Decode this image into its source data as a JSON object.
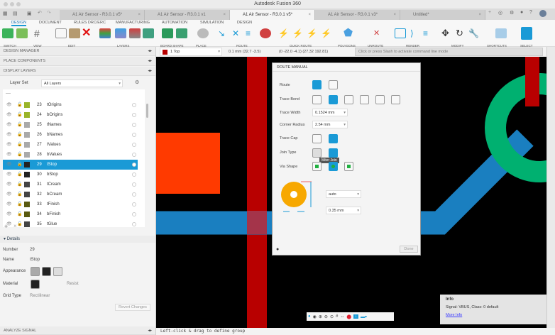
{
  "app": {
    "title": "Autodesk Fusion 360"
  },
  "tabs": [
    {
      "label": "A1 Air Sensor - R3.0.1 v5*"
    },
    {
      "label": "A1 Air Sensor - R3.0.1 v1"
    },
    {
      "label": "A1 Air Sensor - R3.0.1 v5*",
      "active": true
    },
    {
      "label": "A1 Air Sensor - R3.0.1 v3*"
    },
    {
      "label": "Untitled*"
    }
  ],
  "ribbon": {
    "tabs": [
      "DESIGN",
      "DOCUMENT",
      "RULES DRC/ERC",
      "MANUFACTURING",
      "AUTOMATION",
      "SIMULATION",
      "DESIGN"
    ],
    "groups": [
      "SWITCH",
      "VIEW",
      "EDIT",
      "LAYERS",
      "BOARD SHAPE",
      "PLACE",
      "ROUTE",
      "QUICK ROUTE",
      "POLYGONS",
      "UNROUTE",
      "RENDER",
      "MODIFY",
      "SHORTCUTS",
      "SELECT"
    ]
  },
  "left": {
    "design_manager": "DESIGN MANAGER",
    "place_components": "PLACE COMPONENTS",
    "display_layers": "DISPLAY LAYERS",
    "layer_set_label": "Layer Set",
    "layer_set_value": "All Layers",
    "layers": [
      {
        "num": "23",
        "name": "tOrigins",
        "color": "#9ab52a"
      },
      {
        "num": "24",
        "name": "bOrigins",
        "color": "#9ab52a"
      },
      {
        "num": "25",
        "name": "tNames",
        "color": "#aaaaaa"
      },
      {
        "num": "26",
        "name": "bNames",
        "color": "#aaaaaa"
      },
      {
        "num": "27",
        "name": "tValues",
        "color": "#aaaaaa"
      },
      {
        "num": "28",
        "name": "bValues",
        "color": "#aaaaaa"
      },
      {
        "num": "29",
        "name": "tStop",
        "color": "#222222",
        "selected": true
      },
      {
        "num": "30",
        "name": "bStop",
        "color": "#222222"
      },
      {
        "num": "31",
        "name": "tCream",
        "color": "#444444"
      },
      {
        "num": "32",
        "name": "bCream",
        "color": "#444444"
      },
      {
        "num": "33",
        "name": "tFinish",
        "color": "#5a5a10"
      },
      {
        "num": "34",
        "name": "bFinish",
        "color": "#5a5a10"
      },
      {
        "num": "35",
        "name": "tGlue",
        "color": "#444444"
      }
    ],
    "details": {
      "header": "Details",
      "number_label": "Number",
      "number": "29",
      "name_label": "Name",
      "name": "tStop",
      "appearance_label": "Appearance",
      "material_label": "Material",
      "material_value": "Resist",
      "grid_label": "Grid Type",
      "grid_value": "Rectilinear",
      "revert": "Revert Changes"
    },
    "analyze": "ANALYZE SIGNAL"
  },
  "cmdbar": {
    "layer": "1 Top",
    "coord1": "0.1 mm (32.7 -3.5)",
    "coord2": "(0 -22.0 -4.1) (27.32 192.81)",
    "command_placeholder": "Click or press Slash to activate command line mode"
  },
  "dialog": {
    "title": "ROUTE MANUAL",
    "route_label": "Route",
    "bend_label": "Trace Bend",
    "width_label": "Trace Width",
    "width_value": "0.1524 mm",
    "radius_label": "Corner Radius",
    "radius_value": "2.54 mm",
    "cap_label": "Trace Cap",
    "join_label": "Join Type",
    "via_label": "Via Shape",
    "tooltip": "Miter Join",
    "via_drill": "auto",
    "via_size": "0.35 mm",
    "done": "Done"
  },
  "info": {
    "title": "Info",
    "text": "Signal: VBUS, Class: 0 default",
    "link": "More Info"
  },
  "status": "Left-click & drag to define group",
  "colors": {
    "accent": "#1a9ad6",
    "trace_red": "#b80000",
    "trace_blue": "#1a7fc0",
    "pad_orange": "#ff3a00",
    "green": "#00b070",
    "via": "#f7a800"
  }
}
